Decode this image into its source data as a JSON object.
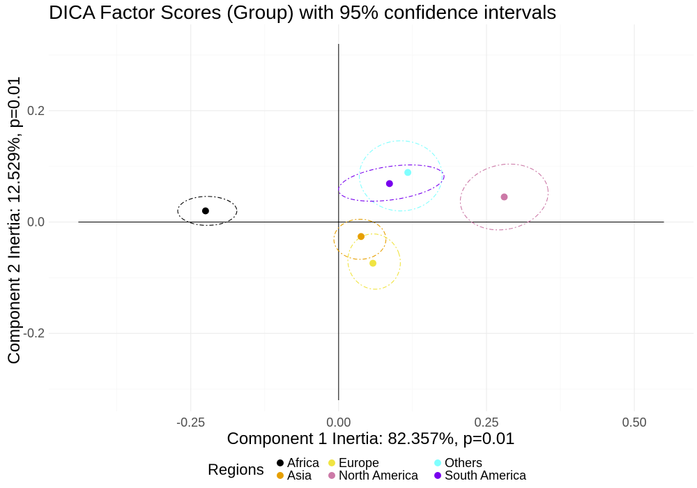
{
  "chart_data": {
    "type": "scatter",
    "title": "DICA Factor Scores (Group) with 95% confidence intervals",
    "xlabel": "Component 1 Inertia: 82.357%, p=0.01",
    "ylabel": "Component 2 Inertia: 12.529%, p=0.01",
    "xlim": [
      -0.49,
      0.6
    ],
    "ylim": [
      -0.34,
      0.355
    ],
    "x_ticks": [
      -0.25,
      0.0,
      0.25,
      0.5
    ],
    "x_tick_labels": [
      "-0.25",
      "0.00",
      "0.25",
      "0.50"
    ],
    "y_ticks": [
      -0.2,
      0.0,
      0.2
    ],
    "y_tick_labels": [
      "-0.2",
      "0.0",
      "0.2"
    ],
    "grid": true,
    "origin_lines": {
      "x_range": [
        -0.44,
        0.55
      ],
      "y_range": [
        -0.32,
        0.32
      ]
    },
    "legend": {
      "title": "Regions",
      "placement": "bottom"
    },
    "series": [
      {
        "name": "Africa",
        "color": "#000000",
        "x": -0.225,
        "y": 0.02,
        "ellipse": {
          "cx": -0.222,
          "cy": 0.02,
          "rx": 0.05,
          "ry": 0.026,
          "angle_deg": 0
        }
      },
      {
        "name": "Asia",
        "color": "#E69F00",
        "x": 0.038,
        "y": -0.026,
        "ellipse": {
          "cx": 0.036,
          "cy": -0.031,
          "rx": 0.044,
          "ry": 0.036,
          "angle_deg": 0
        }
      },
      {
        "name": "Europe",
        "color": "#F0E442",
        "x": 0.058,
        "y": -0.074,
        "ellipse": {
          "cx": 0.06,
          "cy": -0.071,
          "rx": 0.044,
          "ry": 0.05,
          "angle_deg": 20
        }
      },
      {
        "name": "North America",
        "color": "#CC79A7",
        "x": 0.28,
        "y": 0.045,
        "ellipse": {
          "cx": 0.28,
          "cy": 0.045,
          "rx": 0.075,
          "ry": 0.058,
          "angle_deg": 12
        }
      },
      {
        "name": "Others",
        "color": "#80FFFF",
        "x": 0.117,
        "y": 0.089,
        "ellipse": {
          "cx": 0.105,
          "cy": 0.083,
          "rx": 0.07,
          "ry": 0.063,
          "angle_deg": 0
        }
      },
      {
        "name": "South America",
        "color": "#7800EE",
        "x": 0.086,
        "y": 0.069,
        "ellipse": {
          "cx": 0.089,
          "cy": 0.07,
          "rx": 0.09,
          "ry": 0.03,
          "angle_deg": 8
        }
      }
    ]
  }
}
